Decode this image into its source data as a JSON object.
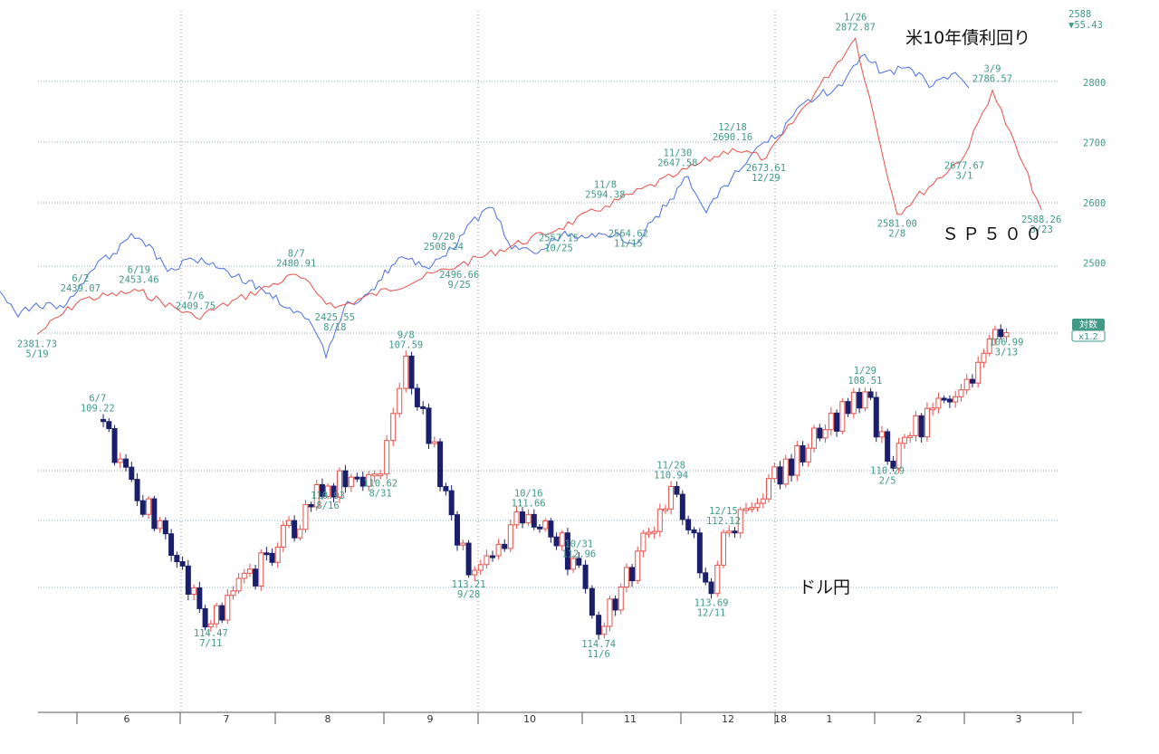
{
  "colors": {
    "sp500": "#e8504a",
    "yield": "#4a6fe0",
    "up": "#e8504a",
    "down": "#1a1f6b",
    "label": "#3f9a86",
    "grid": "#8aa8c8"
  },
  "corner": {
    "top": "2588",
    "change": "▼55.43"
  },
  "log_badge": {
    "label": "対数",
    "scale": "x1.2"
  },
  "chart_data": {
    "type": "line",
    "titles": {
      "yield": "米10年債利回り",
      "sp500": "ＳＰ５００",
      "usdjpy": "ドル円"
    },
    "x_month_labels": [
      "6",
      "7",
      "8",
      "9",
      "10",
      "11",
      "12",
      "18",
      "1",
      "2",
      "3"
    ],
    "y_ticks": [
      2500,
      2600,
      2700,
      2800
    ],
    "series": [
      {
        "name": "ＳＰ５００",
        "x": [
          "5/19",
          "6/2",
          "6/19",
          "7/6",
          "8/7",
          "8/18",
          "9/25",
          "10/25",
          "11/8",
          "11/30",
          "12/18",
          "12/29",
          "1/26",
          "2/8",
          "3/1",
          "3/9",
          "3/23"
        ],
        "values": [
          2381.73,
          2439.07,
          2453.46,
          2409.75,
          2480.91,
          2425.55,
          2496.66,
          2557.15,
          2594.38,
          2647.58,
          2690.16,
          2673.61,
          2872.87,
          2581.0,
          2677.67,
          2786.57,
          2588.26
        ]
      },
      {
        "name": "米10年債利回り",
        "x": [],
        "values": []
      },
      {
        "name": "ドル円",
        "x": [
          "6/7",
          "7/11",
          "8/16",
          "8/31",
          "9/8",
          "9/28",
          "10/16",
          "10/31",
          "11/6",
          "11/28",
          "12/11",
          "12/15",
          "1/29",
          "2/5",
          "3/13"
        ],
        "values": [
          109.22,
          114.47,
          110.93,
          110.62,
          107.59,
          113.21,
          111.66,
          112.96,
          114.74,
          110.94,
          113.69,
          112.12,
          108.51,
          110.29,
          106.99
        ]
      }
    ],
    "annotations": [
      {
        "date": "5/19",
        "value": "2381.73"
      },
      {
        "date": "6/2",
        "value": "2439.07"
      },
      {
        "date": "6/19",
        "value": "2453.46"
      },
      {
        "date": "7/6",
        "value": "2409.75"
      },
      {
        "date": "8/7",
        "value": "2480.91"
      },
      {
        "date": "8/18",
        "value": "2425.55"
      },
      {
        "date": "9/20",
        "value": "2508.24"
      },
      {
        "date": "9/25",
        "value": "2496.66"
      },
      {
        "date": "10/25",
        "value": "2557.15"
      },
      {
        "date": "11/8",
        "value": "2594.38"
      },
      {
        "date": "11/15",
        "value": "2564.62"
      },
      {
        "date": "11/30",
        "value": "2647.58"
      },
      {
        "date": "12/18",
        "value": "2690.16"
      },
      {
        "date": "12/29",
        "value": "2673.61"
      },
      {
        "date": "1/26",
        "value": "2872.87"
      },
      {
        "date": "2/8",
        "value": "2581.00"
      },
      {
        "date": "3/1",
        "value": "2677.67"
      },
      {
        "date": "3/9",
        "value": "2786.57"
      },
      {
        "date": "3/23",
        "value": "2588.26"
      },
      {
        "date": "6/7",
        "value": "109.22"
      },
      {
        "date": "7/11",
        "value": "114.47"
      },
      {
        "date": "8/16",
        "value": "110.93"
      },
      {
        "date": "8/31",
        "value": "110.62"
      },
      {
        "date": "9/8",
        "value": "107.59"
      },
      {
        "date": "9/28",
        "value": "113.21"
      },
      {
        "date": "10/16",
        "value": "111.66"
      },
      {
        "date": "10/31",
        "value": "112.96"
      },
      {
        "date": "11/6",
        "value": "114.74"
      },
      {
        "date": "11/28",
        "value": "110.94"
      },
      {
        "date": "12/11",
        "value": "113.69"
      },
      {
        "date": "12/15",
        "value": "112.12"
      },
      {
        "date": "1/29",
        "value": "108.51"
      },
      {
        "date": "2/5",
        "value": "110.29"
      },
      {
        "date": "3/13",
        "value": "106.99"
      }
    ]
  }
}
